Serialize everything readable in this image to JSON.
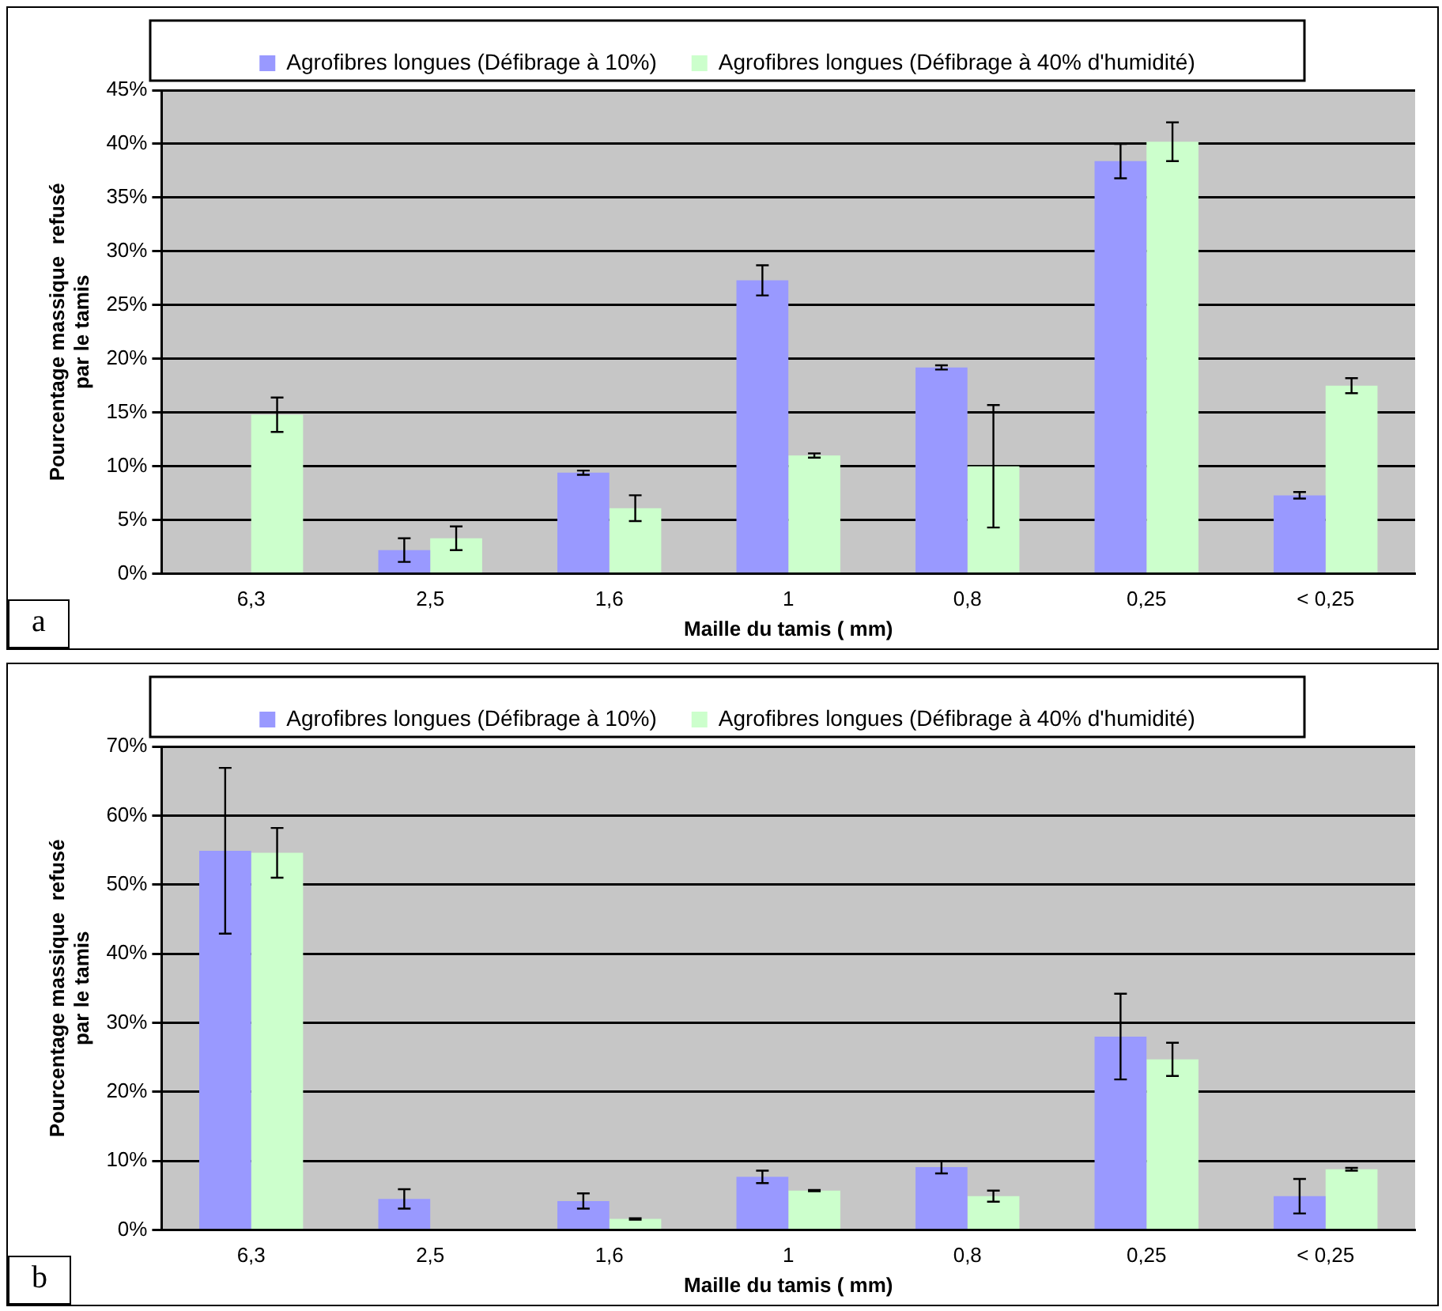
{
  "chart_data": [
    {
      "type": "bar",
      "categories": [
        "6,3",
        "2,5",
        "1,6",
        "1",
        "0,8",
        "0,25",
        "< 0,25"
      ],
      "xlabel": "Maille du tamis ( mm)",
      "ylabel": "Pourcentage massique  refusé\npar le tamis",
      "series": [
        {
          "name": "Agrofibres longues (Défibrage à 10%)",
          "color": "#9999ff",
          "values": [
            null,
            2.2,
            9.4,
            27.3,
            19.2,
            38.4,
            7.3
          ],
          "errors": [
            null,
            1.1,
            0.2,
            1.4,
            0.2,
            1.6,
            0.3
          ]
        },
        {
          "name": "Agrofibres longues (Défibrage à 40% d'humidité)",
          "color": "#ccffcc",
          "values": [
            14.8,
            3.3,
            6.1,
            11.0,
            10.0,
            40.2,
            17.5
          ],
          "errors": [
            1.6,
            1.1,
            1.2,
            0.2,
            5.7,
            1.8,
            0.7
          ]
        }
      ],
      "ylim": [
        0,
        45
      ],
      "yticks": [
        {
          "value": 0,
          "label": "0%"
        },
        {
          "value": 5,
          "label": "5%"
        },
        {
          "value": 10,
          "label": "10%"
        },
        {
          "value": 15,
          "label": "15%"
        },
        {
          "value": 20,
          "label": "20%"
        },
        {
          "value": 25,
          "label": "25%"
        },
        {
          "value": 30,
          "label": "30%"
        },
        {
          "value": 35,
          "label": "35%"
        },
        {
          "value": 40,
          "label": "40%"
        },
        {
          "value": 45,
          "label": "45%"
        }
      ],
      "grid": "y",
      "legend": "top",
      "annotations": [
        "a"
      ]
    },
    {
      "type": "bar",
      "categories": [
        "6,3",
        "2,5",
        "1,6",
        "1",
        "0,8",
        "0,25",
        "< 0,25"
      ],
      "xlabel": "Maille du tamis ( mm)",
      "ylabel": "Pourcentage massique  refusé\npar le tamis",
      "series": [
        {
          "name": "Agrofibres longues (Défibrage à 10%)",
          "color": "#9999ff",
          "values": [
            54.9,
            4.5,
            4.2,
            7.7,
            9.1,
            28.0,
            4.9
          ],
          "errors": [
            12,
            1.4,
            1.1,
            0.9,
            0.9,
            6.2,
            2.5
          ]
        },
        {
          "name": "Agrofibres longues (Défibrage à 40% d'humidité)",
          "color": "#ccffcc",
          "values": [
            54.6,
            null,
            1.6,
            5.7,
            4.9,
            24.7,
            8.8
          ],
          "errors": [
            3.6,
            null,
            0.1,
            0.1,
            0.8,
            2.4,
            0.2
          ]
        }
      ],
      "ylim": [
        0,
        70
      ],
      "yticks": [
        {
          "value": 0,
          "label": "0%"
        },
        {
          "value": 10,
          "label": "10%"
        },
        {
          "value": 20,
          "label": "20%"
        },
        {
          "value": 30,
          "label": "30%"
        },
        {
          "value": 40,
          "label": "40%"
        },
        {
          "value": 50,
          "label": "50%"
        },
        {
          "value": 60,
          "label": "60%"
        },
        {
          "value": 70,
          "label": "70%"
        }
      ],
      "grid": "y",
      "legend": "top",
      "annotations": [
        "b"
      ]
    }
  ]
}
